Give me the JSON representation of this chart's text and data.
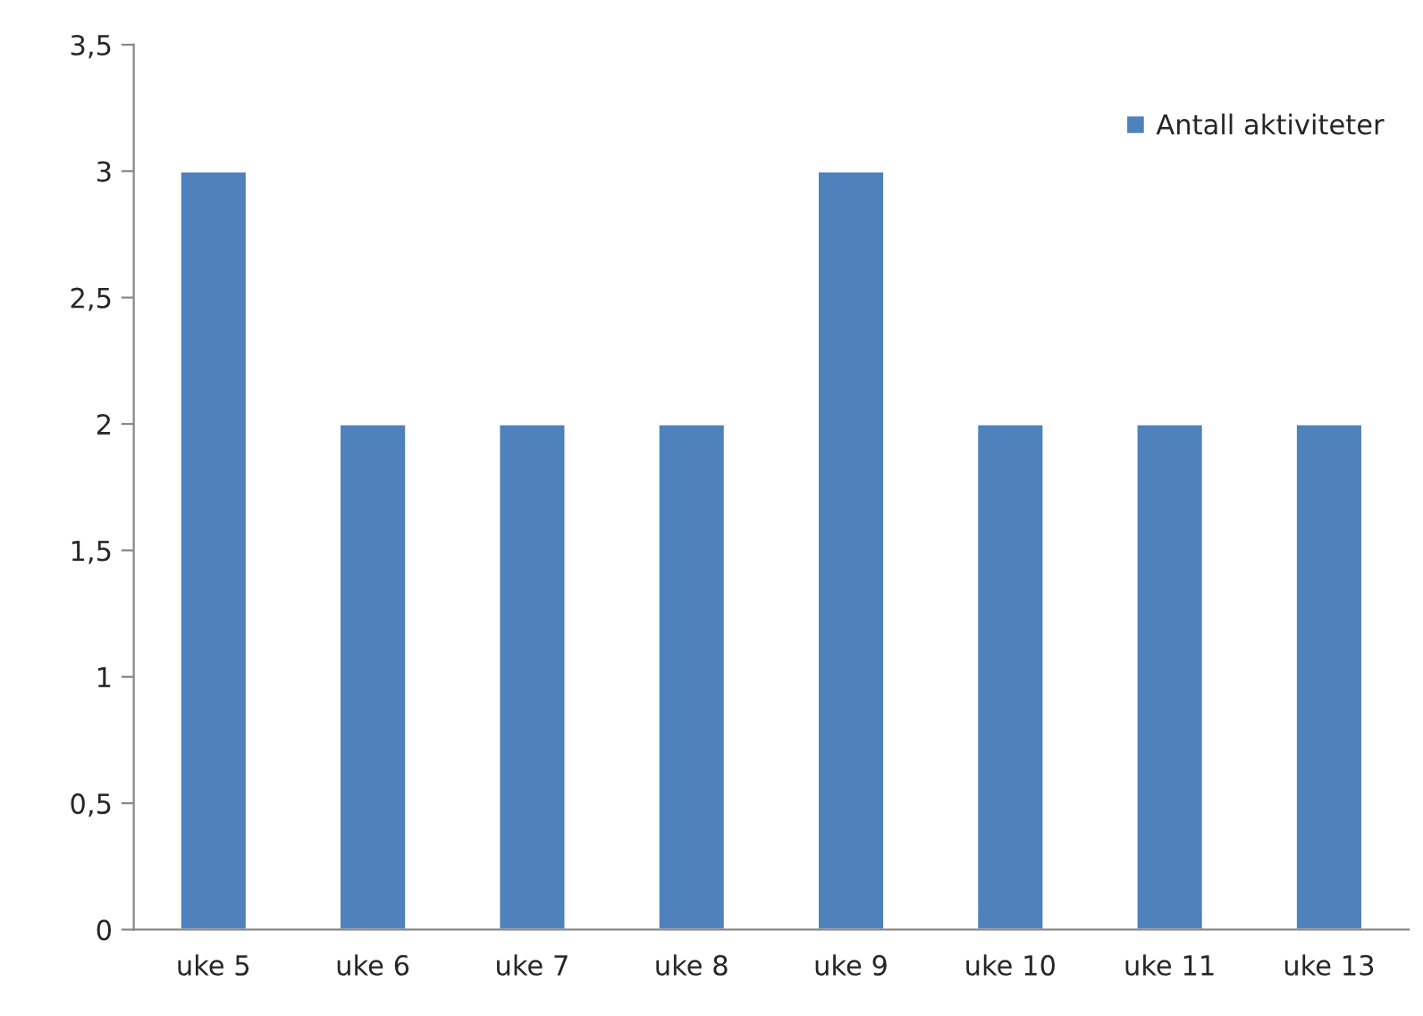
{
  "chart_data": {
    "type": "bar",
    "categories": [
      "uke 5",
      "uke 6",
      "uke 7",
      "uke 8",
      "uke 9",
      "uke 10",
      "uke 11",
      "uke 13"
    ],
    "series": [
      {
        "name": "Antall aktiviteter",
        "color": "#4f81bd",
        "values": [
          3,
          2,
          2,
          2,
          3,
          2,
          2,
          2
        ]
      }
    ],
    "ylim": [
      0,
      3.5
    ],
    "yticks": [
      0,
      {
        "value": 0.5,
        "label": "0,5"
      },
      1,
      {
        "value": 1.5,
        "label": "1,5"
      },
      2,
      {
        "value": 2.5,
        "label": "2,5"
      },
      3,
      {
        "value": 3.5,
        "label": "3,5"
      }
    ],
    "grid": false,
    "legend": "top right"
  }
}
